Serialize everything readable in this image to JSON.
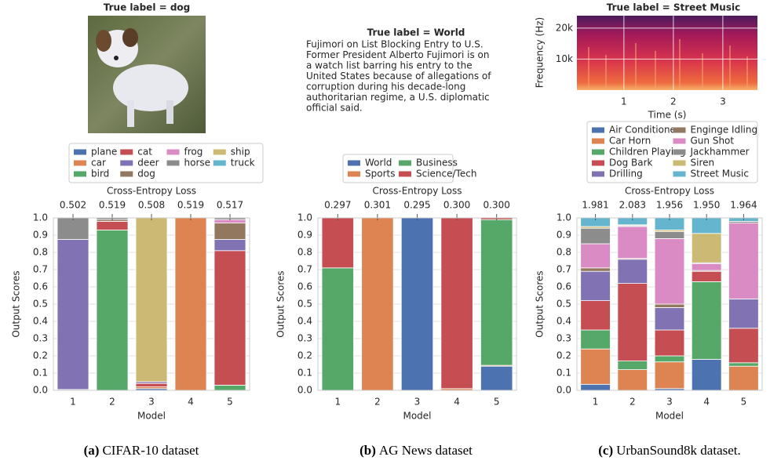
{
  "chart_data": [
    {
      "type": "bar",
      "stacked": true,
      "title": "True label = dog",
      "caption": {
        "label": "(a)",
        "text": "CIFAR-10 dataset"
      },
      "legend_columns": 4,
      "categories": [
        "1",
        "2",
        "3",
        "4",
        "5"
      ],
      "xlabel": "Model",
      "ylabel": "Output Scores",
      "ylim": [
        0,
        1
      ],
      "yticks": [
        {
          "value": 0,
          "label": "0.0"
        },
        0.1,
        0.2,
        0.3,
        0.4,
        0.5,
        0.6,
        0.7,
        0.8,
        0.9,
        {
          "value": 1,
          "label": "1.0"
        }
      ],
      "grid": true,
      "loss": {
        "label": "Cross-Entropy Loss",
        "values": [
          0.502,
          0.519,
          0.508,
          0.519,
          0.517
        ]
      },
      "series": [
        {
          "name": "plane",
          "color": "#4c72b0",
          "values": [
            0,
            0,
            0.01,
            0,
            0
          ]
        },
        {
          "name": "car",
          "color": "#dd8452",
          "values": [
            0,
            0,
            0.01,
            1.0,
            0
          ]
        },
        {
          "name": "bird",
          "color": "#55a868",
          "values": [
            0.005,
            0.93,
            0,
            0,
            0.03
          ]
        },
        {
          "name": "cat",
          "color": "#c44e52",
          "values": [
            0,
            0.05,
            0.02,
            0,
            0.78
          ]
        },
        {
          "name": "deer",
          "color": "#8172b3",
          "values": [
            0.87,
            0,
            0.01,
            0,
            0.065
          ]
        },
        {
          "name": "dog",
          "color": "#937860",
          "values": [
            0,
            0.01,
            0,
            0,
            0.095
          ]
        },
        {
          "name": "frog",
          "color": "#da8bc3",
          "values": [
            0,
            0,
            0,
            0,
            0.02
          ]
        },
        {
          "name": "horse",
          "color": "#8c8c8c",
          "values": [
            0.125,
            0.01,
            0,
            0,
            0.01
          ]
        },
        {
          "name": "ship",
          "color": "#ccb974",
          "values": [
            0,
            0,
            0.95,
            0,
            0
          ]
        },
        {
          "name": "truck",
          "color": "#64b5cd",
          "values": [
            0,
            0,
            0,
            0,
            0
          ]
        }
      ]
    },
    {
      "type": "bar",
      "stacked": true,
      "title": "True label = World",
      "text_lines": [
        "Fujimori on List Blocking Entry to U.S.",
        "Former President Alberto Fujimori is on",
        "a watch list barring his entry to the",
        "United States because of allegations of",
        "corruption during his decade-long",
        "authoritarian regime, a U.S. diplomatic",
        "official said."
      ],
      "caption": {
        "label": "(b)",
        "text": "AG News dataset"
      },
      "legend_columns": 2,
      "categories": [
        "1",
        "2",
        "3",
        "4",
        "5"
      ],
      "xlabel": "Model",
      "ylabel": "Output Scores",
      "ylim": [
        0,
        1
      ],
      "yticks": [
        {
          "value": 0,
          "label": "0.0"
        },
        0.1,
        0.2,
        0.3,
        0.4,
        0.5,
        0.6,
        0.7,
        0.8,
        0.9,
        {
          "value": 1,
          "label": "1.0"
        }
      ],
      "grid": true,
      "loss": {
        "label": "Cross-Entropy Loss",
        "values": [
          0.297,
          0.301,
          0.295,
          0.3,
          0.3
        ],
        "value_labels": [
          "0.297",
          "0.301",
          "0.295",
          "0.300",
          "0.300"
        ]
      },
      "series": [
        {
          "name": "World",
          "color": "#4c72b0",
          "values": [
            0,
            0,
            1.0,
            0,
            0.14
          ]
        },
        {
          "name": "Sports",
          "color": "#dd8452",
          "values": [
            0,
            1.0,
            0,
            0.01,
            0.005
          ]
        },
        {
          "name": "Business",
          "color": "#55a868",
          "values": [
            0.71,
            0,
            0,
            0,
            0.845
          ]
        },
        {
          "name": "Science/Tech",
          "color": "#c44e52",
          "values": [
            0.29,
            0,
            0,
            0.99,
            0.01
          ]
        }
      ]
    },
    {
      "type": "bar",
      "stacked": true,
      "title": "True label = Street Music",
      "spectrogram": {
        "xlabel": "Time (s)",
        "ylabel": "Frequency (Hz)",
        "xlim": [
          0.05,
          3.7
        ],
        "xticks": [
          1,
          2,
          3
        ],
        "ylim": [
          0,
          24000
        ],
        "yticks": [
          {
            "value": 10000,
            "label": "10k"
          },
          {
            "value": 20000,
            "label": "20k"
          }
        ]
      },
      "caption": {
        "label": "(c)",
        "text": "UrbanSound8k dataset."
      },
      "legend_columns": 2,
      "categories": [
        "1",
        "2",
        "3",
        "4",
        "5"
      ],
      "xlabel": "Model",
      "ylabel": "Output Scores",
      "ylim": [
        0,
        1
      ],
      "yticks": [
        {
          "value": 0,
          "label": "0.0"
        },
        0.1,
        0.2,
        0.3,
        0.4,
        0.5,
        0.6,
        0.7,
        0.8,
        0.9,
        {
          "value": 1,
          "label": "1.0"
        }
      ],
      "grid": true,
      "loss": {
        "label": "Cross-Entropy Loss",
        "values": [
          1.981,
          2.083,
          1.956,
          1.95,
          1.964
        ],
        "value_labels": [
          "1.981",
          "2.083",
          "1.956",
          "1.950",
          "1.964"
        ]
      },
      "series": [
        {
          "name": "Air Conditioner",
          "color": "#4c72b0",
          "values": [
            0.035,
            0,
            0.01,
            0.18,
            0
          ]
        },
        {
          "name": "Car Horn",
          "color": "#dd8452",
          "values": [
            0.205,
            0.12,
            0.155,
            0,
            0.14
          ]
        },
        {
          "name": "Children Playing",
          "color": "#55a868",
          "values": [
            0.11,
            0.05,
            0.035,
            0.45,
            0.02
          ]
        },
        {
          "name": "Dog Bark",
          "color": "#c44e52",
          "values": [
            0.17,
            0.45,
            0.15,
            0.06,
            0.2
          ]
        },
        {
          "name": "Drilling",
          "color": "#8172b3",
          "values": [
            0.17,
            0.14,
            0.13,
            0,
            0.17
          ]
        },
        {
          "name": "Enginge Idling",
          "color": "#937860",
          "values": [
            0.02,
            0.005,
            0.02,
            0.005,
            0
          ]
        },
        {
          "name": "Gun Shot",
          "color": "#da8bc3",
          "values": [
            0.14,
            0.185,
            0.38,
            0.04,
            0.44
          ]
        },
        {
          "name": "Jackhammer",
          "color": "#8c8c8c",
          "values": [
            0.09,
            0.005,
            0.04,
            0.005,
            0.01
          ]
        },
        {
          "name": "Siren",
          "color": "#ccb974",
          "values": [
            0.01,
            0.005,
            0.01,
            0.17,
            0
          ]
        },
        {
          "name": "Street Music",
          "color": "#64b5cd",
          "values": [
            0.05,
            0.04,
            0.07,
            0.09,
            0.02
          ]
        }
      ]
    }
  ]
}
